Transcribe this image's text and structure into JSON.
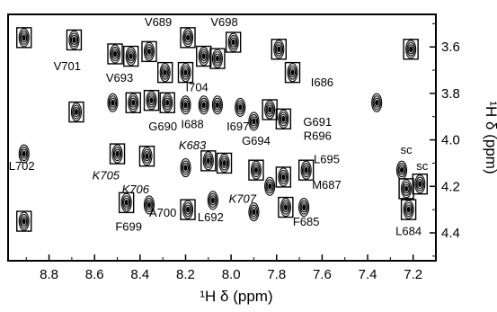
{
  "chart_data": {
    "type": "scatter",
    "subtype": "2D NMR contour spectrum",
    "xlabel": "¹H δ (ppm)",
    "ylabel": "¹H δ (ppm)",
    "x_axis_reversed": true,
    "y_axis_reversed": true,
    "xlim": [
      8.98,
      7.1
    ],
    "ylim": [
      3.46,
      4.52
    ],
    "x_ticks": [
      "8.8",
      "8.6",
      "8.4",
      "8.2",
      "8.0",
      "7.8",
      "7.6",
      "7.4",
      "7.2"
    ],
    "x_tick_values": [
      8.8,
      8.6,
      8.4,
      8.2,
      8.0,
      7.8,
      7.6,
      7.4,
      7.2
    ],
    "y_ticks": [
      "3.6",
      "3.8",
      "4.0",
      "4.2",
      "4.4"
    ],
    "y_tick_values": [
      3.6,
      3.8,
      4.0,
      4.2,
      4.4
    ],
    "y_axis_side": "right",
    "grid": false,
    "peaks": [
      {
        "x": 8.91,
        "y": 3.56,
        "boxed": true
      },
      {
        "x": 8.69,
        "y": 3.57,
        "boxed": true
      },
      {
        "x": 8.51,
        "y": 3.63,
        "boxed": true
      },
      {
        "x": 8.44,
        "y": 3.64,
        "boxed": true
      },
      {
        "x": 8.36,
        "y": 3.62,
        "boxed": true
      },
      {
        "x": 8.29,
        "y": 3.71,
        "boxed": true
      },
      {
        "x": 8.19,
        "y": 3.56,
        "boxed": true
      },
      {
        "x": 8.2,
        "y": 3.71,
        "boxed": true
      },
      {
        "x": 8.12,
        "y": 3.64,
        "boxed": true
      },
      {
        "x": 8.06,
        "y": 3.65,
        "boxed": true
      },
      {
        "x": 7.99,
        "y": 3.58,
        "boxed": true
      },
      {
        "x": 7.79,
        "y": 3.61,
        "boxed": true
      },
      {
        "x": 7.73,
        "y": 3.71,
        "boxed": true
      },
      {
        "x": 7.21,
        "y": 3.61,
        "boxed": true
      },
      {
        "x": 8.68,
        "y": 3.88,
        "boxed": true
      },
      {
        "x": 8.52,
        "y": 3.84,
        "boxed": false
      },
      {
        "x": 8.43,
        "y": 3.84,
        "boxed": true
      },
      {
        "x": 8.35,
        "y": 3.83,
        "boxed": true
      },
      {
        "x": 8.28,
        "y": 3.84,
        "boxed": true
      },
      {
        "x": 8.2,
        "y": 3.85,
        "boxed": false
      },
      {
        "x": 8.12,
        "y": 3.85,
        "boxed": false
      },
      {
        "x": 8.06,
        "y": 3.85,
        "boxed": false
      },
      {
        "x": 7.96,
        "y": 3.86,
        "boxed": false
      },
      {
        "x": 7.9,
        "y": 3.92,
        "boxed": false
      },
      {
        "x": 7.83,
        "y": 3.87,
        "boxed": true
      },
      {
        "x": 7.77,
        "y": 3.91,
        "boxed": true
      },
      {
        "x": 7.36,
        "y": 3.84,
        "boxed": false
      },
      {
        "x": 8.91,
        "y": 4.06,
        "boxed": false
      },
      {
        "x": 8.5,
        "y": 4.06,
        "boxed": true
      },
      {
        "x": 8.37,
        "y": 4.07,
        "boxed": true
      },
      {
        "x": 8.2,
        "y": 4.12,
        "boxed": false
      },
      {
        "x": 8.1,
        "y": 4.09,
        "boxed": true
      },
      {
        "x": 8.03,
        "y": 4.1,
        "boxed": true
      },
      {
        "x": 7.89,
        "y": 4.13,
        "boxed": true
      },
      {
        "x": 7.83,
        "y": 4.2,
        "boxed": false
      },
      {
        "x": 7.77,
        "y": 4.16,
        "boxed": true
      },
      {
        "x": 7.67,
        "y": 4.13,
        "boxed": true
      },
      {
        "x": 8.46,
        "y": 4.27,
        "boxed": true
      },
      {
        "x": 8.36,
        "y": 4.28,
        "boxed": false
      },
      {
        "x": 8.19,
        "y": 4.3,
        "boxed": true
      },
      {
        "x": 8.08,
        "y": 4.26,
        "boxed": false
      },
      {
        "x": 7.9,
        "y": 4.31,
        "boxed": false
      },
      {
        "x": 7.76,
        "y": 4.29,
        "boxed": true
      },
      {
        "x": 7.68,
        "y": 4.29,
        "boxed": false
      },
      {
        "x": 8.91,
        "y": 4.35,
        "boxed": true
      },
      {
        "x": 7.25,
        "y": 4.13,
        "boxed": false
      },
      {
        "x": 7.23,
        "y": 4.21,
        "boxed": true
      },
      {
        "x": 7.22,
        "y": 4.3,
        "boxed": true
      },
      {
        "x": 7.17,
        "y": 4.19,
        "boxed": true
      }
    ],
    "annotations": [
      {
        "text": "V689",
        "x": 8.32,
        "y": 3.51,
        "italic": false
      },
      {
        "text": "V698",
        "x": 8.03,
        "y": 3.51,
        "italic": false
      },
      {
        "text": "V701",
        "x": 8.72,
        "y": 3.7,
        "italic": false
      },
      {
        "text": "V693",
        "x": 8.49,
        "y": 3.75,
        "italic": false
      },
      {
        "text": "I704",
        "x": 8.15,
        "y": 3.79,
        "italic": false
      },
      {
        "text": "I686",
        "x": 7.6,
        "y": 3.77,
        "italic": false
      },
      {
        "text": "I688",
        "x": 8.17,
        "y": 3.95,
        "italic": false
      },
      {
        "text": "G690",
        "x": 8.3,
        "y": 3.96,
        "italic": false
      },
      {
        "text": "I697",
        "x": 7.97,
        "y": 3.96,
        "italic": false
      },
      {
        "text": "G694",
        "x": 7.89,
        "y": 4.02,
        "italic": false
      },
      {
        "text": "G691",
        "x": 7.62,
        "y": 3.94,
        "italic": false
      },
      {
        "text": "R696",
        "x": 7.62,
        "y": 4.0,
        "italic": false
      },
      {
        "text": "L702",
        "x": 8.92,
        "y": 4.13,
        "italic": false
      },
      {
        "text": "K683",
        "x": 8.17,
        "y": 4.04,
        "italic": true
      },
      {
        "text": "L695",
        "x": 7.58,
        "y": 4.1,
        "italic": false
      },
      {
        "text": "K705",
        "x": 8.55,
        "y": 4.17,
        "italic": true
      },
      {
        "text": "sc",
        "x": 7.23,
        "y": 4.06,
        "italic": false
      },
      {
        "text": "sc",
        "x": 7.16,
        "y": 4.13,
        "italic": false
      },
      {
        "text": "M687",
        "x": 7.58,
        "y": 4.21,
        "italic": false
      },
      {
        "text": "K706",
        "x": 8.42,
        "y": 4.23,
        "italic": true
      },
      {
        "text": "K707",
        "x": 7.95,
        "y": 4.27,
        "italic": true
      },
      {
        "text": "A700",
        "x": 8.3,
        "y": 4.33,
        "italic": false
      },
      {
        "text": "L692",
        "x": 8.09,
        "y": 4.35,
        "italic": false
      },
      {
        "text": "F699",
        "x": 8.45,
        "y": 4.39,
        "italic": false
      },
      {
        "text": "F685",
        "x": 7.67,
        "y": 4.37,
        "italic": false
      },
      {
        "text": "L684",
        "x": 7.22,
        "y": 4.41,
        "italic": false
      }
    ]
  }
}
